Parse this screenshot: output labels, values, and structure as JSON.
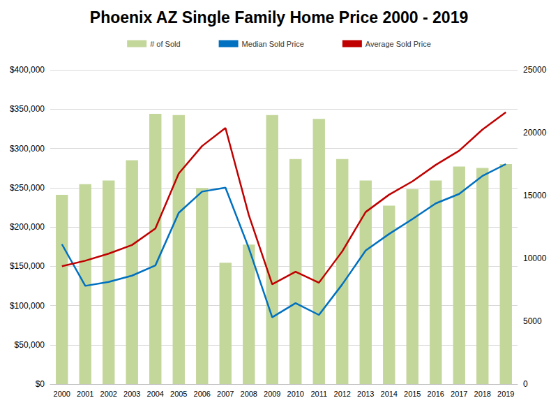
{
  "chart_data": {
    "type": "bar",
    "title": "Phoenix AZ Single Family Home Price 2000 - 2019",
    "categories": [
      "2000",
      "2001",
      "2002",
      "2003",
      "2004",
      "2005",
      "2006",
      "2007",
      "2008",
      "2009",
      "2010",
      "2011",
      "2012",
      "2013",
      "2014",
      "2015",
      "2016",
      "2017",
      "2018",
      "2019"
    ],
    "series": [
      {
        "name": "# of Sold",
        "type": "bar",
        "axis": "y2",
        "color": "#c4d79b",
        "values": [
          15050,
          15900,
          16200,
          17800,
          21500,
          21400,
          15600,
          9650,
          11100,
          21400,
          17900,
          21100,
          17900,
          16200,
          14200,
          15500,
          16200,
          17300,
          17200,
          17500
        ]
      },
      {
        "name": "Median Sold Price",
        "type": "line",
        "color": "#0070c0",
        "values": [
          178000,
          125000,
          130000,
          138000,
          151000,
          218000,
          245000,
          250000,
          173000,
          85000,
          103000,
          88000,
          127000,
          170000,
          191000,
          210000,
          230000,
          242000,
          265000,
          280000
        ]
      },
      {
        "name": "Average Sold Price",
        "type": "line",
        "color": "#c00000",
        "values": [
          150000,
          157000,
          166000,
          177000,
          198000,
          268000,
          303000,
          326000,
          215000,
          127000,
          143000,
          129000,
          169000,
          219000,
          241000,
          258000,
          279000,
          297000,
          324000,
          346000
        ]
      }
    ],
    "ylim": [
      0,
      400000
    ],
    "yticks": [
      {
        "value": 0,
        "label": "$0"
      },
      {
        "value": 50000,
        "label": "$50,000"
      },
      {
        "value": 100000,
        "label": "$100,000"
      },
      {
        "value": 150000,
        "label": "$150,000"
      },
      {
        "value": 200000,
        "label": "$200,000"
      },
      {
        "value": 250000,
        "label": "$250,000"
      },
      {
        "value": 300000,
        "label": "$300,000"
      },
      {
        "value": 350000,
        "label": "$350,000"
      },
      {
        "value": 400000,
        "label": "$400,000"
      }
    ],
    "y2lim": [
      0,
      25000
    ],
    "y2ticks": [
      0,
      5000,
      10000,
      15000,
      20000,
      25000
    ],
    "grid": true,
    "legend": "top"
  }
}
